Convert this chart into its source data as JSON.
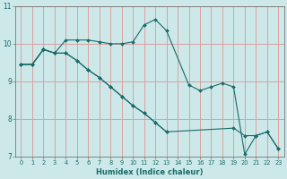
{
  "xlabel": "Humidex (Indice chaleur)",
  "xlim": [
    -0.5,
    23.5
  ],
  "ylim": [
    7,
    11
  ],
  "yticks": [
    7,
    8,
    9,
    10,
    11
  ],
  "xticks": [
    0,
    1,
    2,
    3,
    4,
    5,
    6,
    7,
    8,
    9,
    10,
    11,
    12,
    13,
    14,
    15,
    16,
    17,
    18,
    19,
    20,
    21,
    22,
    23
  ],
  "bg_color": "#cce8e8",
  "line_color": "#1a6b6b",
  "grid_color": "#dba0a0",
  "line1_x": [
    0,
    1,
    2,
    3,
    4,
    5,
    6,
    7,
    8,
    9,
    10,
    11,
    12,
    13,
    15,
    16,
    17,
    18,
    19,
    20,
    21,
    22,
    23
  ],
  "line1_y": [
    9.45,
    9.45,
    9.85,
    9.75,
    10.1,
    10.1,
    10.1,
    10.05,
    10.0,
    10.0,
    10.05,
    10.5,
    10.65,
    10.35,
    8.9,
    8.75,
    8.85,
    8.95,
    8.85,
    7.05,
    7.55,
    7.65,
    7.2
  ],
  "line2_x": [
    0,
    1,
    2,
    3,
    4,
    5,
    6,
    7,
    8,
    9,
    10,
    11,
    12,
    13
  ],
  "line2_y": [
    9.45,
    9.45,
    9.85,
    9.75,
    9.75,
    9.55,
    9.3,
    9.1,
    8.85,
    8.6,
    8.35,
    8.15,
    7.9,
    7.65
  ],
  "line3_x": [
    0,
    1,
    2,
    3,
    4,
    5,
    6,
    7,
    8,
    9,
    10,
    11,
    12,
    13,
    19,
    20,
    21,
    22,
    23
  ],
  "line3_y": [
    9.45,
    9.45,
    9.85,
    9.75,
    9.75,
    9.55,
    9.3,
    9.1,
    8.85,
    8.6,
    8.35,
    8.15,
    7.9,
    7.65,
    7.75,
    7.55,
    7.55,
    7.65,
    7.2
  ]
}
